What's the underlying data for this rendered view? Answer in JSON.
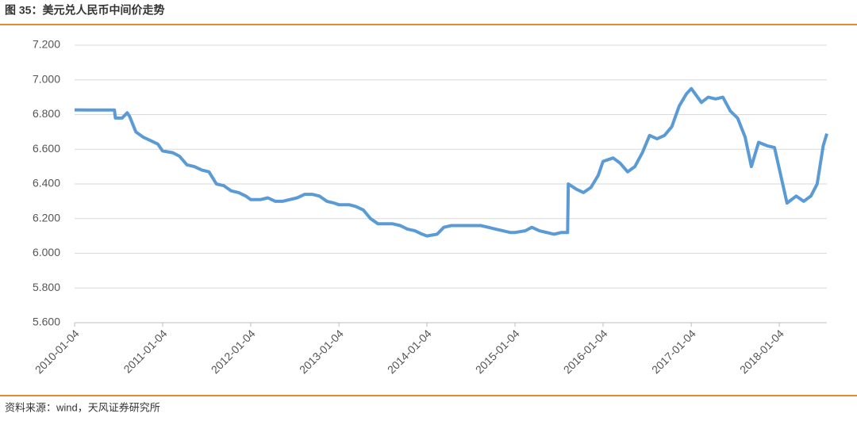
{
  "title": "图 35：美元兑人民币中间价走势",
  "source": "资料来源：wind，天风证券研究所",
  "chart_data": {
    "type": "line",
    "x": [
      "2010-01-04",
      "2010-03-04",
      "2010-06-18",
      "2010-06-22",
      "2010-07-20",
      "2010-08-10",
      "2010-08-20",
      "2010-09-15",
      "2010-10-15",
      "2010-11-15",
      "2010-12-15",
      "2011-01-04",
      "2011-02-15",
      "2011-03-15",
      "2011-04-15",
      "2011-05-15",
      "2011-06-15",
      "2011-07-15",
      "2011-08-15",
      "2011-09-15",
      "2011-10-15",
      "2011-11-15",
      "2011-12-15",
      "2012-01-04",
      "2012-02-15",
      "2012-03-15",
      "2012-04-15",
      "2012-05-15",
      "2012-06-15",
      "2012-07-15",
      "2012-08-15",
      "2012-09-15",
      "2012-10-15",
      "2012-11-15",
      "2012-12-15",
      "2013-01-04",
      "2013-02-15",
      "2013-03-15",
      "2013-04-15",
      "2013-05-15",
      "2013-06-15",
      "2013-07-15",
      "2013-08-15",
      "2013-09-15",
      "2013-10-15",
      "2013-11-15",
      "2013-12-15",
      "2014-01-04",
      "2014-02-15",
      "2014-03-15",
      "2014-04-15",
      "2014-05-15",
      "2014-06-15",
      "2014-07-15",
      "2014-08-15",
      "2014-09-15",
      "2014-10-15",
      "2014-11-15",
      "2014-12-15",
      "2015-01-04",
      "2015-02-15",
      "2015-03-15",
      "2015-04-15",
      "2015-05-15",
      "2015-06-15",
      "2015-07-15",
      "2015-08-10",
      "2015-08-13",
      "2015-09-15",
      "2015-10-15",
      "2015-11-15",
      "2015-12-15",
      "2016-01-04",
      "2016-02-15",
      "2016-03-15",
      "2016-04-15",
      "2016-05-15",
      "2016-06-15",
      "2016-07-15",
      "2016-08-15",
      "2016-09-15",
      "2016-10-15",
      "2016-11-15",
      "2016-12-15",
      "2017-01-04",
      "2017-02-15",
      "2017-03-15",
      "2017-04-15",
      "2017-05-15",
      "2017-06-15",
      "2017-07-15",
      "2017-08-15",
      "2017-09-10",
      "2017-10-10",
      "2017-11-15",
      "2017-12-15",
      "2018-01-10",
      "2018-02-05",
      "2018-03-15",
      "2018-04-15",
      "2018-05-15",
      "2018-06-10",
      "2018-07-05",
      "2018-07-20"
    ],
    "series": [
      {
        "color": "#5b9bd5",
        "values": [
          6.827,
          6.826,
          6.826,
          6.78,
          6.78,
          6.81,
          6.79,
          6.7,
          6.67,
          6.65,
          6.63,
          6.59,
          6.58,
          6.56,
          6.51,
          6.5,
          6.48,
          6.47,
          6.4,
          6.39,
          6.36,
          6.35,
          6.33,
          6.31,
          6.31,
          6.32,
          6.3,
          6.3,
          6.31,
          6.32,
          6.34,
          6.34,
          6.33,
          6.3,
          6.29,
          6.28,
          6.28,
          6.27,
          6.25,
          6.2,
          6.17,
          6.17,
          6.17,
          6.16,
          6.14,
          6.13,
          6.11,
          6.1,
          6.11,
          6.15,
          6.16,
          6.16,
          6.16,
          6.16,
          6.16,
          6.15,
          6.14,
          6.13,
          6.12,
          6.12,
          6.13,
          6.15,
          6.13,
          6.12,
          6.11,
          6.12,
          6.12,
          6.4,
          6.37,
          6.35,
          6.38,
          6.45,
          6.53,
          6.55,
          6.52,
          6.47,
          6.5,
          6.58,
          6.68,
          6.66,
          6.68,
          6.73,
          6.85,
          6.92,
          6.95,
          6.87,
          6.9,
          6.89,
          6.9,
          6.82,
          6.78,
          6.67,
          6.5,
          6.64,
          6.62,
          6.61,
          6.45,
          6.29,
          6.33,
          6.3,
          6.33,
          6.4,
          6.62,
          6.69
        ]
      }
    ],
    "xlim": [
      "2010-01-04",
      "2018-07-20"
    ],
    "xticks": [
      "2010-01-04",
      "2011-01-04",
      "2012-01-04",
      "2013-01-04",
      "2014-01-04",
      "2015-01-04",
      "2016-01-04",
      "2017-01-04",
      "2018-01-04"
    ],
    "ylim": [
      5.6,
      7.2
    ],
    "yticks": [
      {
        "value": 5.6,
        "label": "5.600"
      },
      {
        "value": 5.8,
        "label": "5.800"
      },
      {
        "value": 6,
        "label": "6.000"
      },
      {
        "value": 6.2,
        "label": "6.200"
      },
      {
        "value": 6.4,
        "label": "6.400"
      },
      {
        "value": 6.6,
        "label": "6.600"
      },
      {
        "value": 6.8,
        "label": "6.800"
      },
      {
        "value": 7,
        "label": "7.000"
      },
      {
        "value": 7.2,
        "label": "7.200"
      }
    ],
    "grid": true
  }
}
